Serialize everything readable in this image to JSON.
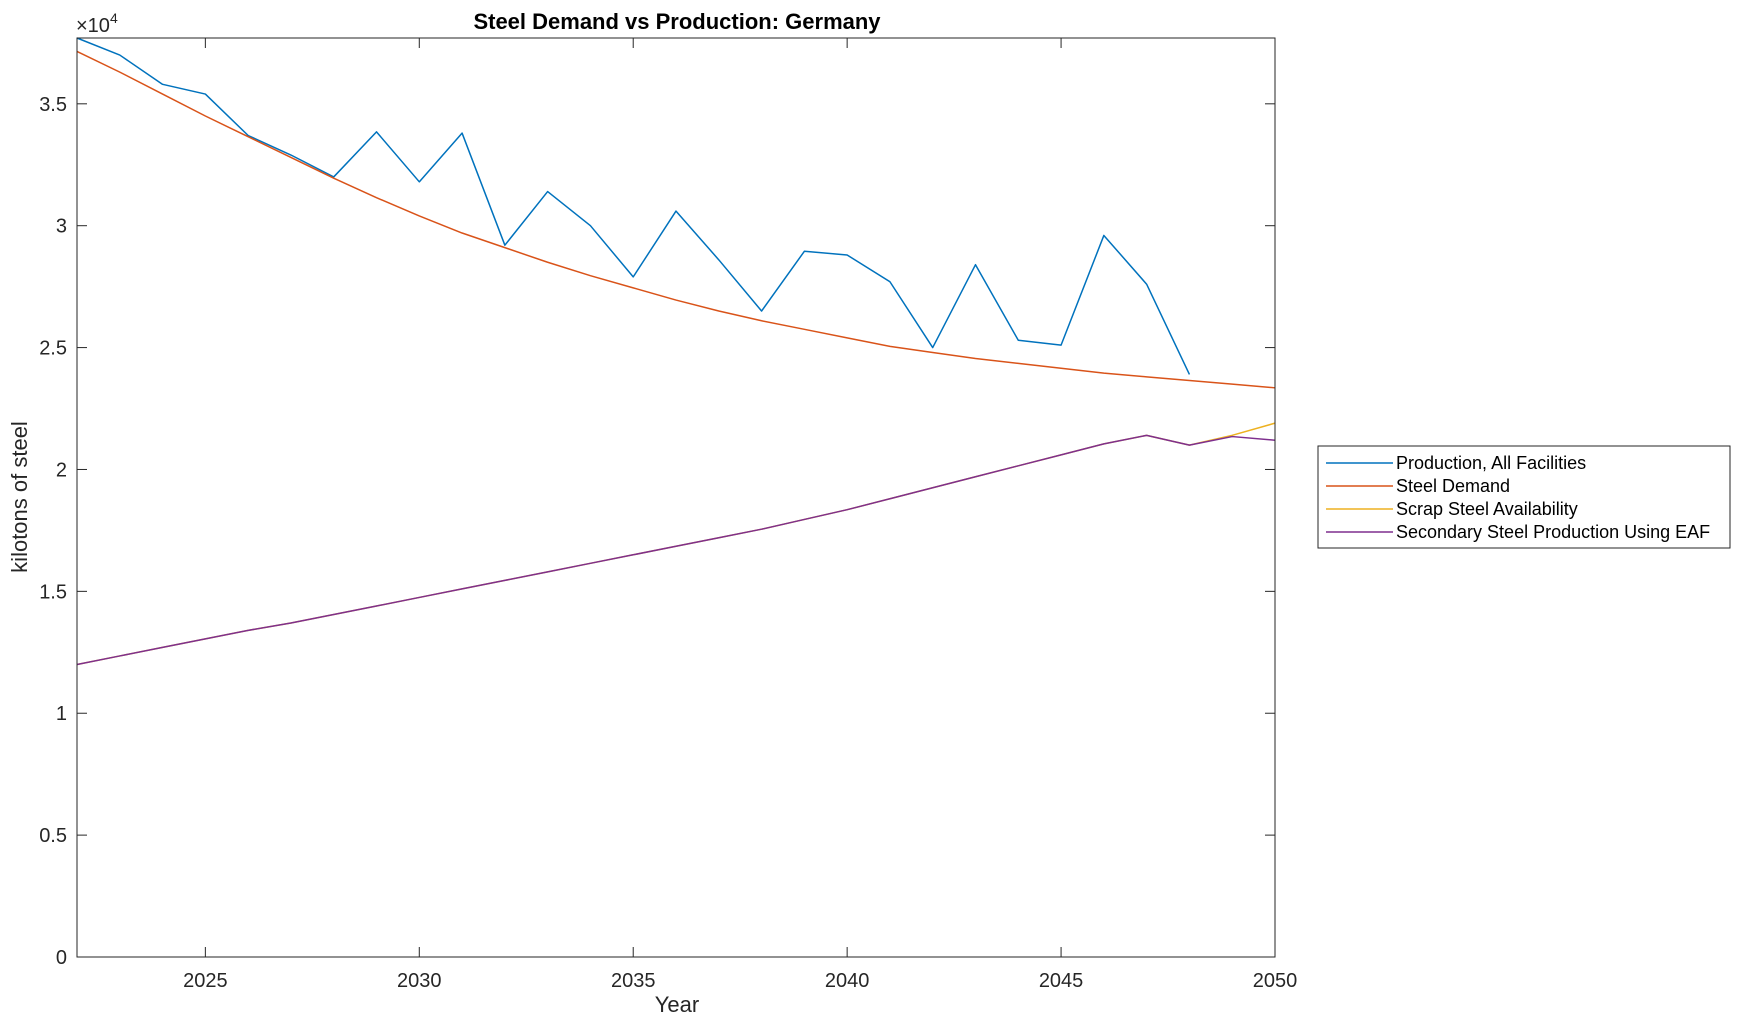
{
  "chart_data": {
    "type": "line",
    "title": "Steel Demand vs Production: Germany",
    "xlabel": "Year",
    "ylabel": "kilotons of steel",
    "xlim": [
      2022,
      2050
    ],
    "ylim": [
      0,
      37700
    ],
    "y_exponent_label": "×10",
    "y_exponent_power": "4",
    "x_ticks": [
      2025,
      2030,
      2035,
      2040,
      2045,
      2050
    ],
    "x_tick_labels": [
      "2025",
      "2030",
      "2035",
      "2040",
      "2045",
      "2050"
    ],
    "y_ticks": [
      0,
      5000,
      10000,
      15000,
      20000,
      25000,
      30000,
      35000
    ],
    "y_tick_labels": [
      "0",
      "0.5",
      "1",
      "1.5",
      "2",
      "2.5",
      "3",
      "3.5"
    ],
    "grid": false,
    "legend_position": "outside-right",
    "x": [
      2022,
      2023,
      2024,
      2025,
      2026,
      2027,
      2028,
      2029,
      2030,
      2031,
      2032,
      2033,
      2034,
      2035,
      2036,
      2037,
      2038,
      2039,
      2040,
      2041,
      2042,
      2043,
      2044,
      2045,
      2046,
      2047,
      2048,
      2049,
      2050
    ],
    "series": [
      {
        "name": "Production, All Facilities",
        "color": "#0072BD",
        "values": [
          37700,
          37000,
          35800,
          35400,
          33700,
          32900,
          32000,
          33850,
          31800,
          33800,
          29200,
          31400,
          30000,
          27900,
          30600,
          28600,
          26500,
          28950,
          28800,
          27700,
          25000,
          28400,
          25300,
          25100,
          29600,
          27600,
          23900,
          null,
          null
        ]
      },
      {
        "name": "Steel Demand",
        "color": "#D95319",
        "values": [
          37150,
          36300,
          35400,
          34500,
          33650,
          32800,
          31950,
          31150,
          30400,
          29700,
          29100,
          28500,
          27950,
          27450,
          26950,
          26500,
          26100,
          25750,
          25400,
          25050,
          24800,
          24550,
          24350,
          24150,
          23950,
          23800,
          23650,
          23500,
          23350
        ]
      },
      {
        "name": "Scrap Steel Availability",
        "color": "#EDB120",
        "values": [
          12000,
          12350,
          12700,
          13050,
          13400,
          13700,
          14050,
          14400,
          14750,
          15100,
          15450,
          15800,
          16150,
          16500,
          16850,
          17200,
          17550,
          17950,
          18350,
          18800,
          19250,
          19700,
          20150,
          20600,
          21050,
          21400,
          21000,
          21400,
          21900
        ]
      },
      {
        "name": "Secondary Steel Production Using EAF",
        "color": "#7E2F8E",
        "values": [
          12000,
          12350,
          12700,
          13050,
          13400,
          13700,
          14050,
          14400,
          14750,
          15100,
          15450,
          15800,
          16150,
          16500,
          16850,
          17200,
          17550,
          17950,
          18350,
          18800,
          19250,
          19700,
          20150,
          20600,
          21050,
          21400,
          21000,
          21350,
          21200
        ]
      }
    ]
  }
}
